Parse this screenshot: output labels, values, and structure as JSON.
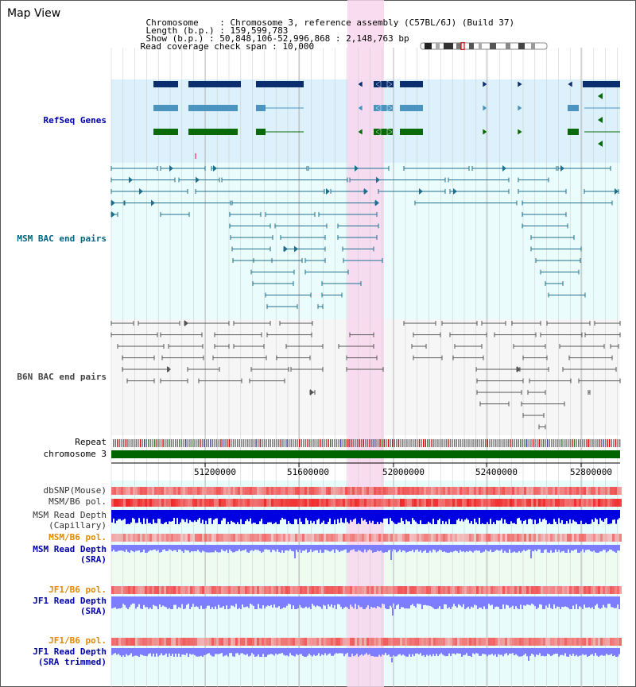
{
  "page_title": "Map View",
  "info": {
    "chromosome_key": "Chromosome",
    "chromosome_val": "Chromosome 3, reference assembly (C57BL/6J) (Build 37)",
    "length_key": "Length (b.p.)",
    "length_val": "159,599,783",
    "show_key": "Show (b.p.)",
    "show_val": "50,848,106-52,996,868 : 2,148,763 bp",
    "span_key": "Read coverage check span",
    "span_val": "10,000"
  },
  "tracks": {
    "refseq": "RefSeq Genes",
    "msm_bac": "MSM BAC end pairs",
    "b6n_bac": "B6N BAC end pairs",
    "repeat": "Repeat",
    "chromosome": "chromosome 3",
    "dbsnp": "dbSNP(Mouse)",
    "msm_b6_pol_1": "MSM/B6 pol.",
    "msm_depth_cap_1": "MSM Read Depth",
    "msm_depth_cap_2": "(Capillary)",
    "msm_b6_pol_2": "MSM/B6 pol.",
    "msm_depth_sra_1": "MSM Read Depth",
    "msm_depth_sra_2": "(SRA)",
    "jf1_b6_pol_1": "JF1/B6 pol.",
    "jf1_depth_sra_1": "JF1 Read Depth",
    "jf1_depth_sra_2": "(SRA)",
    "jf1_b6_pol_2": "JF1/B6 pol.",
    "jf1_depth_trim_1": "JF1 Read Depth",
    "jf1_depth_trim_2": "(SRA trimmed)"
  },
  "axis_ticks": [
    "51200000",
    "51600000",
    "52000000",
    "52400000",
    "52800000"
  ],
  "colors": {
    "refseq_bg": "#dcf1fb",
    "msm_bg": "#eafcfc",
    "b6n_bg": "#f6f6f6",
    "highlight": "#f9d6ef",
    "gene_dark": "#0b2e6f",
    "gene_light": "#4c94c0",
    "gene_green": "#0a6a0a",
    "msm_pair": "#1f6f8f",
    "b6n_pair": "#555555",
    "chromosome_bar": "#006400",
    "snp_red": "#ef4444",
    "depth_blue": "#0000e0",
    "depth_light_blue": "#7d7dff"
  }
}
